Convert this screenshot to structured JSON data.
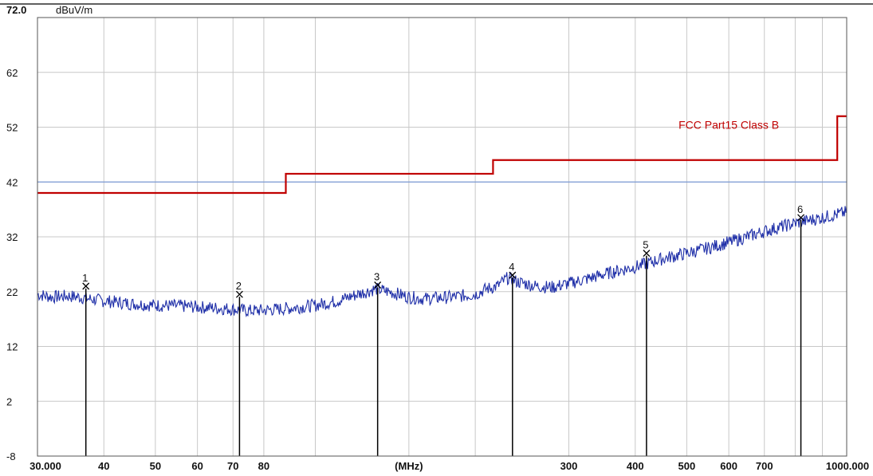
{
  "chart_data": {
    "type": "line",
    "x_scale": "log",
    "xlim": [
      30,
      1000
    ],
    "ylim": [
      -8,
      72
    ],
    "y_top_label": "72.0",
    "y_unit": "dBuV/m",
    "x_unit": "(MHz)",
    "x_ticks": [
      {
        "value": 30,
        "label": "30.000"
      },
      {
        "value": 40,
        "label": "40"
      },
      {
        "value": 50,
        "label": "50"
      },
      {
        "value": 60,
        "label": "60"
      },
      {
        "value": 70,
        "label": "70"
      },
      {
        "value": 80,
        "label": "80"
      },
      {
        "value": 300,
        "label": "300"
      },
      {
        "value": 400,
        "label": "400"
      },
      {
        "value": 500,
        "label": "500"
      },
      {
        "value": 600,
        "label": "600"
      },
      {
        "value": 700,
        "label": "700"
      },
      {
        "value": 1000,
        "label": "1000.000"
      }
    ],
    "x_gridlines": [
      40,
      50,
      60,
      70,
      80,
      100,
      150,
      200,
      300,
      400,
      500,
      600,
      700,
      800,
      900
    ],
    "y_ticks": [
      {
        "value": 62,
        "label": "62"
      },
      {
        "value": 52,
        "label": "52"
      },
      {
        "value": 42,
        "label": "42"
      },
      {
        "value": 32,
        "label": "32"
      },
      {
        "value": 22,
        "label": "22"
      },
      {
        "value": 12,
        "label": "12"
      },
      {
        "value": 2,
        "label": "2"
      },
      {
        "value": -8,
        "label": "-8"
      }
    ],
    "grid": true,
    "limit_line": {
      "name": "FCC Part15 Class B",
      "color": "#c00000",
      "segments": [
        {
          "x0": 30,
          "x1": 88,
          "y": 40.0
        },
        {
          "x0": 88,
          "x1": 216,
          "y": 43.5
        },
        {
          "x0": 216,
          "x1": 960,
          "y": 46.0
        },
        {
          "x0": 960,
          "x1": 1000,
          "y": 54.0
        }
      ]
    },
    "reference_line": {
      "y": 42,
      "color": "#7d9bd6"
    },
    "series": [
      {
        "color": "#1f2fa8",
        "points": [
          [
            30,
            21.5
          ],
          [
            32,
            21.0
          ],
          [
            34,
            21.2
          ],
          [
            36,
            21.0
          ],
          [
            38,
            20.6
          ],
          [
            40,
            20.3
          ],
          [
            45,
            19.8
          ],
          [
            50,
            19.5
          ],
          [
            55,
            19.4
          ],
          [
            60,
            19.2
          ],
          [
            65,
            19.0
          ],
          [
            70,
            18.8
          ],
          [
            75,
            18.5
          ],
          [
            80,
            18.6
          ],
          [
            90,
            19.0
          ],
          [
            100,
            19.5
          ],
          [
            110,
            20.3
          ],
          [
            120,
            21.5
          ],
          [
            130,
            22.5
          ],
          [
            140,
            21.8
          ],
          [
            150,
            21.0
          ],
          [
            160,
            20.7
          ],
          [
            180,
            21.0
          ],
          [
            200,
            21.5
          ],
          [
            210,
            22.5
          ],
          [
            220,
            23.0
          ],
          [
            230,
            24.5
          ],
          [
            240,
            23.8
          ],
          [
            260,
            23.0
          ],
          [
            280,
            22.8
          ],
          [
            300,
            23.5
          ],
          [
            330,
            24.5
          ],
          [
            360,
            25.5
          ],
          [
            400,
            26.5
          ],
          [
            450,
            28.0
          ],
          [
            500,
            29.0
          ],
          [
            550,
            30.0
          ],
          [
            600,
            31.0
          ],
          [
            650,
            32.0
          ],
          [
            700,
            33.0
          ],
          [
            800,
            34.5
          ],
          [
            900,
            35.5
          ],
          [
            1000,
            36.5
          ]
        ]
      }
    ],
    "markers": [
      {
        "label": "1",
        "x": 37.0,
        "y": 23.0
      },
      {
        "label": "2",
        "x": 72.0,
        "y": 21.5
      },
      {
        "label": "3",
        "x": 131.0,
        "y": 23.2
      },
      {
        "label": "4",
        "x": 235.0,
        "y": 25.0
      },
      {
        "label": "5",
        "x": 420.0,
        "y": 29.0
      },
      {
        "label": "6",
        "x": 820.0,
        "y": 35.5
      }
    ]
  }
}
